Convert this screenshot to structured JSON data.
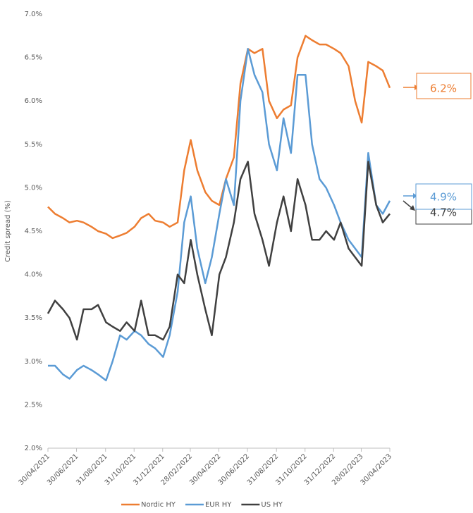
{
  "chart_data": {
    "type": "line",
    "y_label": "Credit spread (%)",
    "x": [
      "2021-04-30",
      "2021-05-15",
      "2021-06-01",
      "2021-06-15",
      "2021-07-01",
      "2021-07-15",
      "2021-08-01",
      "2021-08-15",
      "2021-09-01",
      "2021-09-15",
      "2021-10-01",
      "2021-10-15",
      "2021-11-01",
      "2021-11-15",
      "2021-12-01",
      "2021-12-15",
      "2022-01-01",
      "2022-01-15",
      "2022-02-01",
      "2022-02-15",
      "2022-03-01",
      "2022-03-15",
      "2022-04-01",
      "2022-04-15",
      "2022-05-01",
      "2022-05-15",
      "2022-06-01",
      "2022-06-15",
      "2022-07-01",
      "2022-07-15",
      "2022-08-01",
      "2022-08-15",
      "2022-09-01",
      "2022-09-15",
      "2022-10-01",
      "2022-10-15",
      "2022-11-01",
      "2022-11-15",
      "2022-12-01",
      "2022-12-15",
      "2023-01-01",
      "2023-01-15",
      "2023-02-01",
      "2023-02-15",
      "2023-03-01",
      "2023-03-15",
      "2023-04-01",
      "2023-04-15",
      "2023-04-30"
    ],
    "series": [
      {
        "name": "Nordic HY",
        "color": "#ed7d31",
        "values": [
          4.78,
          4.7,
          4.65,
          4.6,
          4.62,
          4.6,
          4.55,
          4.5,
          4.47,
          4.42,
          4.45,
          4.48,
          4.55,
          4.65,
          4.7,
          4.62,
          4.6,
          4.55,
          4.6,
          5.2,
          5.55,
          5.2,
          4.95,
          4.85,
          4.8,
          5.1,
          5.35,
          6.2,
          6.6,
          6.55,
          6.6,
          6.0,
          5.8,
          5.9,
          5.95,
          6.5,
          6.75,
          6.7,
          6.65,
          6.65,
          6.6,
          6.55,
          6.4,
          6.0,
          5.75,
          6.45,
          6.4,
          6.35,
          6.15
        ]
      },
      {
        "name": "EUR HY",
        "color": "#5b9bd5",
        "values": [
          2.95,
          2.95,
          2.85,
          2.8,
          2.9,
          2.95,
          2.9,
          2.85,
          2.78,
          3.0,
          3.3,
          3.25,
          3.35,
          3.3,
          3.2,
          3.15,
          3.05,
          3.3,
          3.8,
          4.6,
          4.9,
          4.3,
          3.9,
          4.2,
          4.7,
          5.1,
          4.8,
          6.0,
          6.6,
          6.3,
          6.1,
          5.5,
          5.2,
          5.8,
          5.4,
          6.3,
          6.3,
          5.5,
          5.1,
          5.0,
          4.8,
          4.6,
          4.4,
          4.3,
          4.2,
          5.4,
          4.8,
          4.7,
          4.85
        ]
      },
      {
        "name": "US HY",
        "color": "#404040",
        "values": [
          3.55,
          3.7,
          3.6,
          3.5,
          3.25,
          3.6,
          3.6,
          3.65,
          3.45,
          3.4,
          3.35,
          3.45,
          3.35,
          3.7,
          3.3,
          3.3,
          3.25,
          3.4,
          4.0,
          3.9,
          4.4,
          4.0,
          3.6,
          3.3,
          4.0,
          4.2,
          4.6,
          5.1,
          5.3,
          4.7,
          4.4,
          4.1,
          4.6,
          4.9,
          4.5,
          5.1,
          4.8,
          4.4,
          4.4,
          4.5,
          4.4,
          4.6,
          4.3,
          4.2,
          4.1,
          5.3,
          4.8,
          4.6,
          4.7
        ]
      }
    ],
    "annotations": [
      {
        "text": "6.2%",
        "color": "#ed7d31"
      },
      {
        "text": "4.9%",
        "color": "#5b9bd5"
      },
      {
        "text": "4.7%",
        "color": "#404040"
      }
    ],
    "xlim": [
      "2021-04-30",
      "2023-04-30"
    ],
    "xticks": [
      {
        "value": "2021-04-30",
        "label": "30/04/2021"
      },
      {
        "value": "2021-06-30",
        "label": "30/06/2021"
      },
      {
        "value": "2021-08-31",
        "label": "31/08/2021"
      },
      {
        "value": "2021-10-31",
        "label": "31/10/2021"
      },
      {
        "value": "2021-12-31",
        "label": "31/12/2021"
      },
      {
        "value": "2022-02-28",
        "label": "28/02/2022"
      },
      {
        "value": "2022-04-30",
        "label": "30/04/2022"
      },
      {
        "value": "2022-06-30",
        "label": "30/06/2022"
      },
      {
        "value": "2022-08-31",
        "label": "31/08/2022"
      },
      {
        "value": "2022-10-31",
        "label": "31/10/2022"
      },
      {
        "value": "2022-12-31",
        "label": "31/12/2022"
      },
      {
        "value": "2023-02-28",
        "label": "28/02/2023"
      },
      {
        "value": "2023-04-30",
        "label": "30/04/2023"
      }
    ],
    "ylim": [
      2,
      7
    ],
    "yticks": [
      {
        "value": 2,
        "label": "2.0%"
      },
      {
        "value": 2.5,
        "label": "2.5%"
      },
      {
        "value": 3,
        "label": "3.0%"
      },
      {
        "value": 3.5,
        "label": "3.5%"
      },
      {
        "value": 4,
        "label": "4.0%"
      },
      {
        "value": 4.5,
        "label": "4.5%"
      },
      {
        "value": 5,
        "label": "5.0%"
      },
      {
        "value": 5.5,
        "label": "5.5%"
      },
      {
        "value": 6,
        "label": "6.0%"
      },
      {
        "value": 6.5,
        "label": "6.5%"
      },
      {
        "value": 7,
        "label": "7.0%"
      }
    ],
    "legend": "bottom"
  }
}
